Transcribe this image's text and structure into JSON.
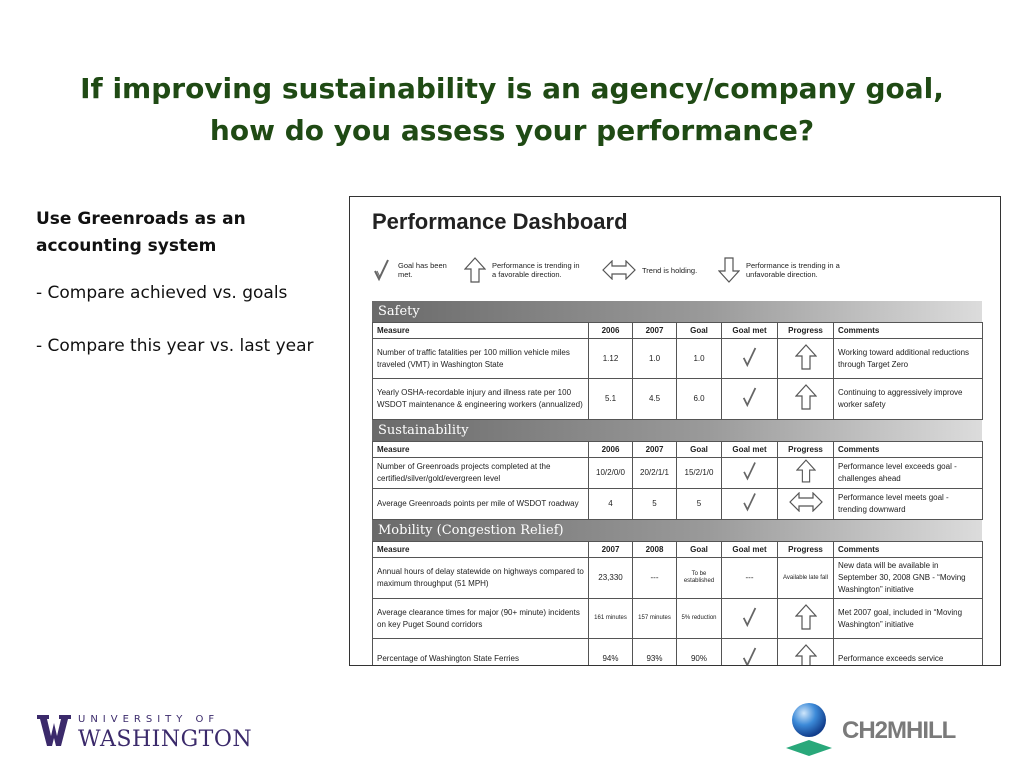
{
  "slide": {
    "title_line1": "If improving sustainability is an agency/company goal,",
    "title_line2": "how do you assess your performance?"
  },
  "left": {
    "heading_line1": "Use Greenroads as an",
    "heading_line2": "accounting system",
    "bullets": [
      "-  Compare achieved vs. goals",
      "-  Compare this year vs. last year"
    ]
  },
  "dashboard": {
    "title": "Performance Dashboard",
    "legend": [
      {
        "icon": "check-icon",
        "text": "Goal has been met."
      },
      {
        "icon": "arrow-up-icon",
        "text": "Performance is trending in a favorable direction."
      },
      {
        "icon": "arrow-both-icon",
        "text": "Trend is holding."
      },
      {
        "icon": "arrow-down-icon",
        "text": "Performance is trending in a unfavorable direction."
      }
    ],
    "sections": [
      {
        "name": "Safety",
        "headers": [
          "Measure",
          "2006",
          "2007",
          "Goal",
          "Goal met",
          "Progress",
          "Comments"
        ],
        "rows": [
          {
            "measure": "Number of traffic fatalities per 100 million vehicle miles traveled (VMT) in Washington State",
            "y1": "1.12",
            "y2": "1.0",
            "goal": "1.0",
            "goal_met": "check-icon",
            "progress": "arrow-up-icon",
            "comments": "Working toward additional reductions through Target Zero"
          },
          {
            "measure": "Yearly OSHA-recordable injury and illness rate per 100 WSDOT maintenance & engineering workers (annualized)",
            "y1": "5.1",
            "y2": "4.5",
            "goal": "6.0",
            "goal_met": "check-icon",
            "progress": "arrow-up-icon",
            "comments": "Continuing to aggressively improve worker safety"
          }
        ]
      },
      {
        "name": "Sustainability",
        "headers": [
          "Measure",
          "2006",
          "2007",
          "Goal",
          "Goal met",
          "Progress",
          "Comments"
        ],
        "rows": [
          {
            "measure": "Number of Greenroads projects completed at the certified/silver/gold/evergreen level",
            "y1": "10/2/0/0",
            "y2": "20/2/1/1",
            "goal": "15/2/1/0",
            "goal_met": "check-icon",
            "progress": "arrow-up-icon",
            "comments": "Performance level exceeds goal - challenges ahead"
          },
          {
            "measure": "Average Greenroads points per mile of WSDOT roadway",
            "y1": "4",
            "y2": "5",
            "goal": "5",
            "goal_met": "check-icon",
            "progress": "arrow-both-icon",
            "comments": "Performance level meets goal - trending downward"
          }
        ]
      },
      {
        "name": "Mobility (Congestion Relief)",
        "headers": [
          "Measure",
          "2007",
          "2008",
          "Goal",
          "Goal met",
          "Progress",
          "Comments"
        ],
        "rows": [
          {
            "measure": "Annual hours of delay statewide on highways compared to maximum throughput (51 MPH)",
            "y1": "23,330",
            "y2": "---",
            "goal": "To be established",
            "goal_met_text": "---",
            "progress_text": "Available late fall",
            "comments": "New data will be available in September 30, 2008 GNB - “Moving Washington” initiative"
          },
          {
            "measure": "Average clearance times for major (90+ minute) incidents on key Puget Sound corridors",
            "y1": "161 minutes",
            "y2": "157 minutes",
            "goal": "5% reduction",
            "goal_met": "check-icon",
            "progress": "arrow-up-icon",
            "comments": "Met 2007 goal, included in “Moving Washington” initiative"
          },
          {
            "measure": "Percentage of Washington State Ferries",
            "y1": "94%",
            "y2": "93%",
            "goal": "90%",
            "goal_met": "check-icon",
            "progress": "arrow-up-icon",
            "comments": "Performance exceeds service"
          }
        ]
      }
    ]
  },
  "logos": {
    "uw_top": "UNIVERSITY OF",
    "uw_bottom": "WASHINGTON",
    "ch2m": "CH2MHILL"
  },
  "colors": {
    "title_green": "#1f4a14",
    "uw_purple": "#3b2a6b",
    "ch2m_gray": "#7a7a7a"
  }
}
